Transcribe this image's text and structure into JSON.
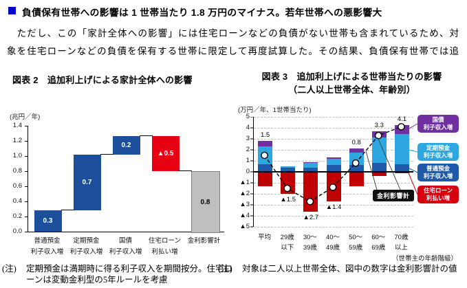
{
  "heading": {
    "bullet_color": "#0000CC",
    "title": "負債保有世帯への影響は 1 世帯当たり 1.8 万円のマイナス。若年世帯への悪影響大"
  },
  "paragraph": {
    "line1": "　ただし、この「家計全体への影響」には住宅ローンなどの負債がない世帯も含まれているため、対",
    "line2": "象を住宅ローンなどの負債を保有する世帯に限定して再度試算した。その結果、負債保有世帯では追"
  },
  "chart_data": [
    {
      "id": "fig2",
      "type": "bar",
      "subtype": "waterfall",
      "title": "図表 2　追加利上げによる家計全体への影響",
      "unit": "(兆円／年)",
      "ylim": [
        0,
        1.4
      ],
      "yticks": [
        "0.0",
        "0.2",
        "0.4",
        "0.6",
        "0.8",
        "1.0",
        "1.2",
        "1.4"
      ],
      "bars": [
        {
          "category": [
            "普通預金",
            "利子収入増"
          ],
          "from": 0,
          "to": 0.28,
          "label": "0.3",
          "color": "#1B4F9B",
          "label_color": "#FFFFFF"
        },
        {
          "category": [
            "定期預金",
            "利子収入増"
          ],
          "from": 0.28,
          "to": 1.02,
          "label": "0.7",
          "color": "#1B4F9B",
          "label_color": "#FFFFFF"
        },
        {
          "category": [
            "国債",
            "利子収入増"
          ],
          "from": 1.02,
          "to": 1.26,
          "label": "0.2",
          "color": "#1B4F9B",
          "label_color": "#FFFFFF"
        },
        {
          "category": [
            "住宅ローン",
            "利払い増"
          ],
          "from": 0.8,
          "to": 1.26,
          "label": "▲0.5",
          "color": "#E60012",
          "label_color": "#FFFFFF"
        },
        {
          "category": [
            "金利影響計"
          ],
          "from": 0,
          "to": 0.8,
          "label": "0.8",
          "color": "#BFBFBF",
          "label_color": "#000000",
          "border_color": "#7F7F7F"
        }
      ],
      "connector_values": [
        0.28,
        1.02,
        1.26,
        0.8
      ],
      "note_label": "(注)",
      "note": "定期預金は満期時に得る利子収入を期間按分。住宅ローンは変動金利型の5年ルールを考慮"
    },
    {
      "id": "fig3",
      "type": "bar",
      "subtype": "stacked-bar-with-line",
      "title_line1": "図表 3　追加利上げによる世帯当たりの影響",
      "title_line2": "（二人以上世帯全体、年齢別）",
      "unit": "(万円／年、1世帯当たり)",
      "ylim": [
        -5,
        5
      ],
      "yticks": [
        {
          "v": 5,
          "label": "5"
        },
        {
          "v": 4,
          "label": "4"
        },
        {
          "v": 3,
          "label": "3"
        },
        {
          "v": 2,
          "label": "2"
        },
        {
          "v": 1,
          "label": "1"
        },
        {
          "v": 0,
          "label": "0"
        },
        {
          "v": -1,
          "label": "▲1"
        },
        {
          "v": -2,
          "label": "▲2"
        },
        {
          "v": -3,
          "label": "▲3"
        },
        {
          "v": -4,
          "label": "▲4"
        },
        {
          "v": -5,
          "label": "▲5"
        }
      ],
      "categories": [
        [
          "平均"
        ],
        [
          "29歳",
          "以下"
        ],
        [
          "30〜",
          "39歳"
        ],
        [
          "40〜",
          "49歳"
        ],
        [
          "50〜",
          "59歳"
        ],
        [
          "60〜",
          "69歳"
        ],
        [
          "70歳",
          "以上"
        ]
      ],
      "xaxis_note": "（世帯主の年齢階級）",
      "series": [
        {
          "name": "普通預金 利子収入増",
          "color": "#1F5AA8",
          "values": [
            0.7,
            0.35,
            0.35,
            0.6,
            0.6,
            0.8,
            0.7
          ]
        },
        {
          "name": "定期預金 利子収入増",
          "color": "#2EA7E0",
          "values": [
            1.6,
            0.15,
            0.45,
            0.6,
            1.15,
            2.3,
            2.75
          ]
        },
        {
          "name": "国債 利子収入増",
          "color": "#7030A0",
          "values": [
            0.5,
            0.0,
            0.1,
            0.1,
            0.35,
            0.6,
            0.8
          ]
        },
        {
          "name": "住宅ローン 利払い増",
          "color": "#C00000",
          "values": [
            -1.3,
            -2.0,
            -3.6,
            -2.7,
            -1.3,
            -0.4,
            -0.15
          ]
        }
      ],
      "line_series": {
        "name": "金利影響計",
        "values": [
          1.5,
          -1.5,
          -2.7,
          -1.4,
          0.8,
          3.3,
          4.1
        ],
        "labels": [
          "1.5",
          "▲1.5",
          "▲2.7",
          "▲1.4",
          "0.8",
          "3.3",
          "4.1"
        ],
        "label_side": [
          "above",
          "below",
          "below",
          "below",
          "above",
          "above",
          "above"
        ]
      },
      "legend": [
        {
          "lines": [
            "国債",
            "利子収入増"
          ],
          "color": "#7030A0"
        },
        {
          "lines": [
            "定期預金",
            "利子収入増"
          ],
          "color": "#2EA7E0"
        },
        {
          "lines": [
            "普通預金",
            "利子収入増"
          ],
          "color": "#1F5AA8"
        },
        {
          "lines": [
            "住宅ローン",
            "利払い増"
          ],
          "color": "#D7000F"
        }
      ],
      "line_badge": "金利影響計",
      "note_label": "(注)",
      "note": "対象は二人以上世帯全体、図中の数字は金利影響計の値"
    }
  ]
}
